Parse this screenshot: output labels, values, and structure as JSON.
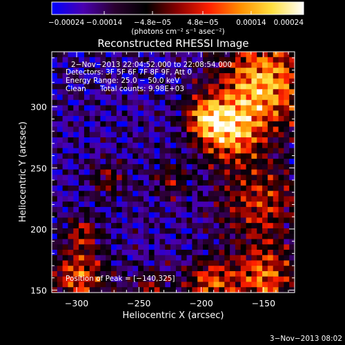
{
  "chart_data": {
    "type": "heatmap",
    "title": "Reconstructed RHESSI Image",
    "xlabel": "Heliocentric X (arcsec)",
    "ylabel": "Heliocentric Y (arcsec)",
    "xlim": [
      -320,
      -125
    ],
    "ylim": [
      148,
      345
    ],
    "xticks": [
      -300,
      -250,
      -200,
      -150
    ],
    "xtick_labels": [
      "−300",
      "−250",
      "−200",
      "−150"
    ],
    "yticks": [
      150,
      200,
      250,
      300
    ],
    "ytick_labels": [
      "150",
      "200",
      "250",
      "300"
    ],
    "colorbar": {
      "position": "top",
      "range": [
        -0.00024,
        0.00024
      ],
      "ticks": [
        -0.00024,
        -0.00014,
        -4.8e-05,
        4.8e-05,
        0.00014,
        0.00024
      ],
      "tick_labels": [
        "−0.00024",
        "−0.00014",
        "−4.8e−05",
        "4.8e−05",
        "0.00014",
        "0.00024"
      ],
      "unit_label": "(photons cm⁻² s⁻¹ asec⁻²)",
      "colors": [
        "#0000ff",
        "#4a00b0",
        "#2a0030",
        "#000000",
        "#8a0000",
        "#ff2000",
        "#ff9000",
        "#ffe040",
        "#ffffff"
      ]
    },
    "annotations": {
      "time_range": "2−Nov−2013 22:04:52.000 to 22:08:54.000",
      "detectors": "Detectors: 3F 5F 6F 7F 8F 9F, Att 0",
      "energy_range": "Energy Range: 25.0 − 50.0 keV",
      "clean": "Clean",
      "total_counts": "Total counts: 9.98E+03",
      "peak": "Position of Peak = [−140,325]"
    },
    "peak_position": [
      -140,
      325
    ],
    "grid": false
  },
  "footer": {
    "timestamp": "3−Nov−2013 08:02"
  }
}
